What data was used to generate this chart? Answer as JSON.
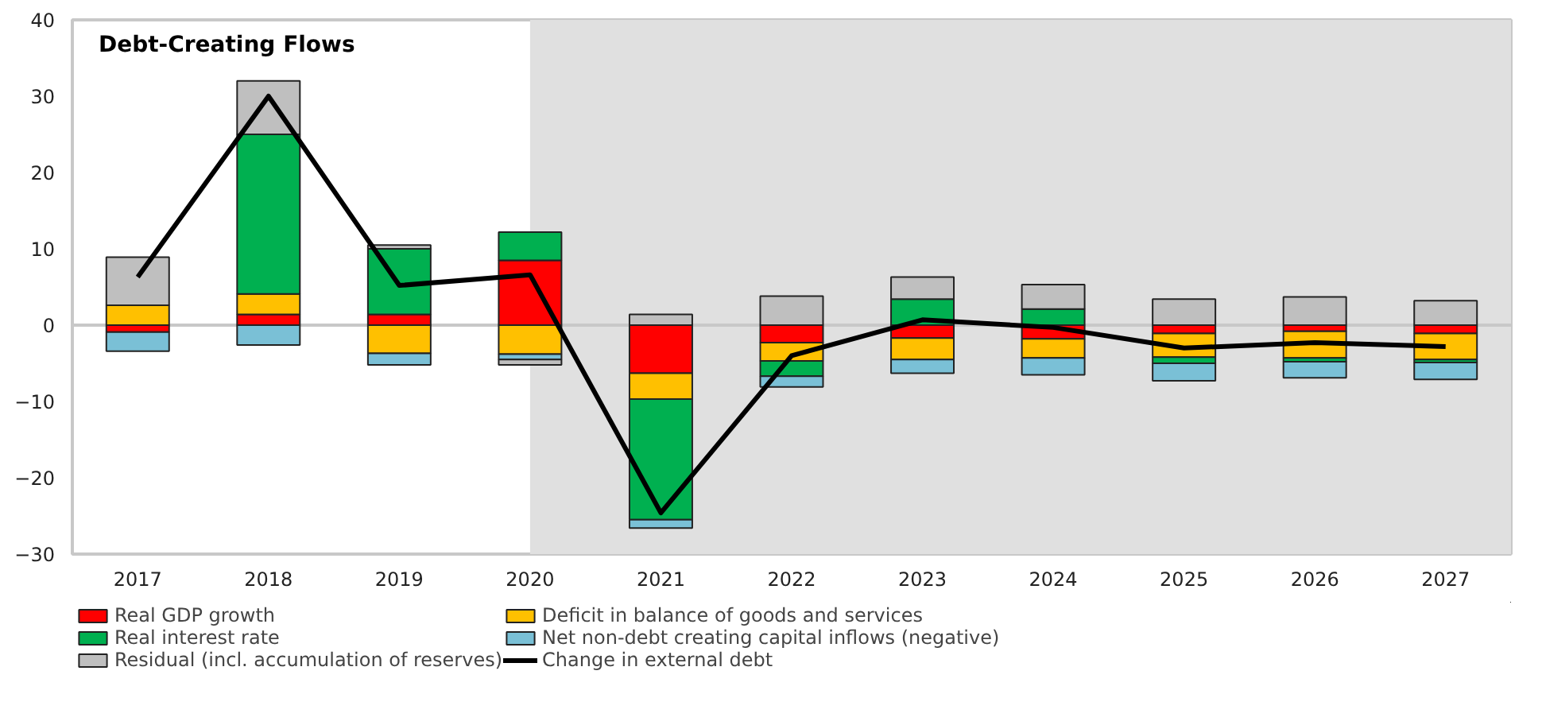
{
  "chart_data": {
    "type": "bar",
    "stacked": true,
    "title": "Debt-Creating  Flows",
    "categories": [
      "2017",
      "2018",
      "2019",
      "2020",
      "2021",
      "2022",
      "2023",
      "2024",
      "2025",
      "2026",
      "2027"
    ],
    "series": [
      {
        "name": "Real GDP growth",
        "color": "#ff0000",
        "values": [
          -0.9,
          1.4,
          1.4,
          8.5,
          -6.3,
          -2.3,
          -1.7,
          -1.8,
          -1.1,
          -0.8,
          -1.1
        ]
      },
      {
        "name": "Deficit in balance of goods and services",
        "color": "#ffc000",
        "values": [
          2.6,
          2.7,
          -3.7,
          -3.8,
          -3.4,
          -2.4,
          -2.8,
          -2.5,
          -3.1,
          -3.5,
          -3.4
        ]
      },
      {
        "name": "Real interest rate",
        "color": "#00b050",
        "values": [
          null,
          20.9,
          8.6,
          3.7,
          -15.8,
          -2.0,
          3.4,
          2.1,
          -0.8,
          -0.5,
          -0.4
        ]
      },
      {
        "name": "Net non-debt creating capital inflows (negative)",
        "color": "#7ac0d6",
        "values": [
          -2.5,
          -2.6,
          -1.5,
          -0.7,
          -1.1,
          -1.4,
          -1.8,
          -2.2,
          -2.3,
          -2.1,
          -2.2
        ]
      },
      {
        "name": "Residual (incl. accumulation of reserves)",
        "color": "#bfbfbf",
        "values": [
          6.3,
          7.0,
          0.5,
          -0.7,
          1.4,
          3.8,
          2.9,
          3.2,
          3.4,
          3.7,
          3.2
        ]
      },
      {
        "name": "Change in external debt",
        "type": "line",
        "color": "#000000",
        "values": [
          6.3,
          30.0,
          5.2,
          6.6,
          -24.6,
          -4.0,
          0.7,
          -0.3,
          -3.0,
          -2.3,
          -2.8
        ]
      }
    ],
    "ylim": [
      -30,
      40
    ],
    "yticks": [
      -30,
      -20,
      -10,
      0,
      10,
      20,
      30,
      40
    ],
    "grid": false,
    "legend": "bottom",
    "marker": "none",
    "line_style": "solid",
    "ref_lines": [
      {
        "axis": "y",
        "value": 0,
        "color": "#c8c8c8"
      }
    ],
    "bands": [
      {
        "axis": "x",
        "from": "2020",
        "to": "2027",
        "color": "#e0e0e0"
      }
    ]
  }
}
